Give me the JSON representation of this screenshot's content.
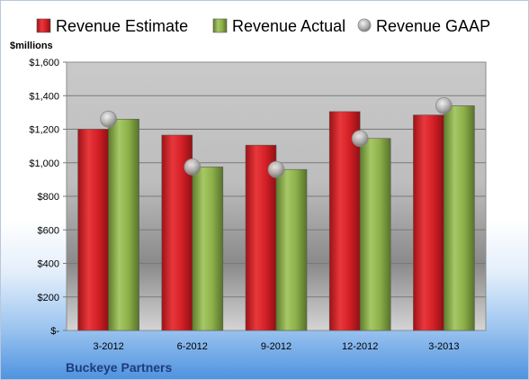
{
  "chart_data": {
    "type": "bar",
    "unit_label": "$millions",
    "company": "Buckeye Partners",
    "categories": [
      "3-2012",
      "6-2012",
      "9-2012",
      "12-2012",
      "3-2013"
    ],
    "series": [
      {
        "name": "Revenue Estimate",
        "kind": "bar",
        "color": "#d42026",
        "values": [
          1200,
          1165,
          1105,
          1305,
          1285
        ]
      },
      {
        "name": "Revenue Actual",
        "kind": "bar",
        "color": "#8db04a",
        "values": [
          1260,
          975,
          960,
          1145,
          1340
        ]
      },
      {
        "name": "Revenue GAAP",
        "kind": "marker",
        "color": "#a8a8a8",
        "values": [
          1260,
          975,
          960,
          1145,
          1340
        ]
      }
    ],
    "y_ticks": [
      {
        "value": 0,
        "label": "$-"
      },
      {
        "value": 200,
        "label": "$200"
      },
      {
        "value": 400,
        "label": "$400"
      },
      {
        "value": 600,
        "label": "$600"
      },
      {
        "value": 800,
        "label": "$800"
      },
      {
        "value": 1000,
        "label": "$1,000"
      },
      {
        "value": 1200,
        "label": "$1,200"
      },
      {
        "value": 1400,
        "label": "$1,400"
      },
      {
        "value": 1600,
        "label": "$1,600"
      }
    ],
    "ylim": [
      0,
      1600
    ],
    "grid": true,
    "legend_position": "top"
  }
}
